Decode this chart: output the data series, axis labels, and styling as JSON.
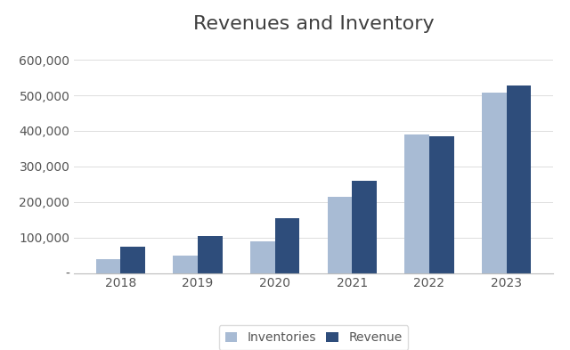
{
  "title": "Revenues and Inventory",
  "years": [
    2018,
    2019,
    2020,
    2021,
    2022,
    2023
  ],
  "inventories": [
    40000,
    50000,
    88000,
    215000,
    390000,
    507000
  ],
  "revenues": [
    75000,
    105000,
    155000,
    260000,
    385000,
    527000
  ],
  "inventory_color": "#a8bbd4",
  "revenue_color": "#2e4d7b",
  "background_color": "#ffffff",
  "title_fontsize": 16,
  "tick_fontsize": 10,
  "legend_fontsize": 10,
  "ylim": [
    0,
    650000
  ],
  "yticks": [
    0,
    100000,
    200000,
    300000,
    400000,
    500000,
    600000
  ],
  "legend_labels": [
    "Inventories",
    "Revenue"
  ],
  "bar_width": 0.32
}
